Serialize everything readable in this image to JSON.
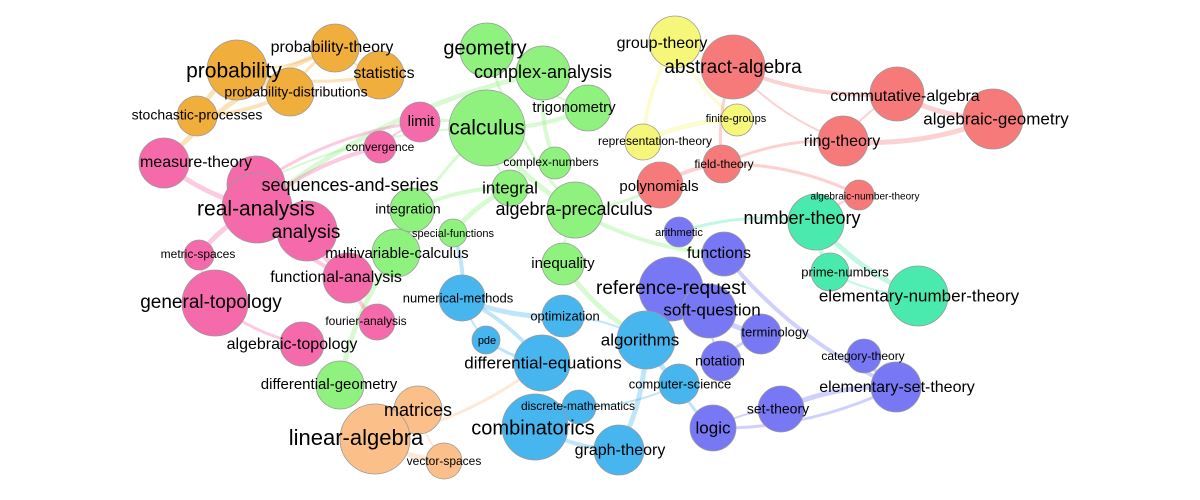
{
  "colors": {
    "orange": "#f0ae3c",
    "green": "#8ff27f",
    "pink": "#f56aaa",
    "yellow": "#f6f67a",
    "red": "#f77a7a",
    "teal": "#4aeaae",
    "blue": "#47b5ee",
    "purple": "#7878f5",
    "peach": "#fbc08a"
  },
  "graph": {
    "nodes": [
      {
        "id": "probability",
        "label": "probability",
        "group": "orange"
      },
      {
        "id": "probability-theory",
        "label": "probability-theory",
        "group": "orange"
      },
      {
        "id": "statistics",
        "label": "statistics",
        "group": "orange"
      },
      {
        "id": "probability-distributions",
        "label": "probability-distributions",
        "group": "orange"
      },
      {
        "id": "stochastic-processes",
        "label": "stochastic-processes",
        "group": "orange"
      },
      {
        "id": "geometry",
        "label": "geometry",
        "group": "green"
      },
      {
        "id": "complex-analysis",
        "label": "complex-analysis",
        "group": "green"
      },
      {
        "id": "trigonometry",
        "label": "trigonometry",
        "group": "green"
      },
      {
        "id": "calculus",
        "label": "calculus",
        "group": "green"
      },
      {
        "id": "complex-numbers",
        "label": "complex-numbers",
        "group": "green"
      },
      {
        "id": "integral",
        "label": "integral",
        "group": "green"
      },
      {
        "id": "algebra-precalculus",
        "label": "algebra-precalculus",
        "group": "green"
      },
      {
        "id": "integration",
        "label": "integration",
        "group": "green"
      },
      {
        "id": "special-functions",
        "label": "special-functions",
        "group": "green"
      },
      {
        "id": "multivariable-calculus",
        "label": "multivariable-calculus",
        "group": "green"
      },
      {
        "id": "inequality",
        "label": "inequality",
        "group": "green"
      },
      {
        "id": "differential-geometry",
        "label": "differential-geometry",
        "group": "green"
      },
      {
        "id": "limit",
        "label": "limit",
        "group": "pink"
      },
      {
        "id": "convergence",
        "label": "convergence",
        "group": "pink"
      },
      {
        "id": "measure-theory",
        "label": "measure-theory",
        "group": "pink"
      },
      {
        "id": "sequences-and-series",
        "label": "sequences-and-series",
        "group": "pink"
      },
      {
        "id": "real-analysis",
        "label": "real-analysis",
        "group": "pink"
      },
      {
        "id": "analysis",
        "label": "analysis",
        "group": "pink"
      },
      {
        "id": "metric-spaces",
        "label": "metric-spaces",
        "group": "pink"
      },
      {
        "id": "functional-analysis",
        "label": "functional-analysis",
        "group": "pink"
      },
      {
        "id": "general-topology",
        "label": "general-topology",
        "group": "pink"
      },
      {
        "id": "fourier-analysis",
        "label": "fourier-analysis",
        "group": "pink"
      },
      {
        "id": "algebraic-topology",
        "label": "algebraic-topology",
        "group": "pink"
      },
      {
        "id": "group-theory",
        "label": "group-theory",
        "group": "yellow"
      },
      {
        "id": "finite-groups",
        "label": "finite-groups",
        "group": "yellow"
      },
      {
        "id": "representation-theory",
        "label": "representation-theory",
        "group": "yellow"
      },
      {
        "id": "abstract-algebra",
        "label": "abstract-algebra",
        "group": "red"
      },
      {
        "id": "commutative-algebra",
        "label": "commutative-algebra",
        "group": "red"
      },
      {
        "id": "algebraic-geometry",
        "label": "algebraic-geometry",
        "group": "red"
      },
      {
        "id": "ring-theory",
        "label": "ring-theory",
        "group": "red"
      },
      {
        "id": "field-theory",
        "label": "field-theory",
        "group": "red"
      },
      {
        "id": "polynomials",
        "label": "polynomials",
        "group": "red"
      },
      {
        "id": "algebraic-number-theory",
        "label": "algebraic-number-theory",
        "group": "red"
      },
      {
        "id": "number-theory",
        "label": "number-theory",
        "group": "teal"
      },
      {
        "id": "prime-numbers",
        "label": "prime-numbers",
        "group": "teal"
      },
      {
        "id": "elementary-number-theory",
        "label": "elementary-number-theory",
        "group": "teal"
      },
      {
        "id": "arithmetic",
        "label": "arithmetic",
        "group": "purple"
      },
      {
        "id": "functions",
        "label": "functions",
        "group": "purple"
      },
      {
        "id": "reference-request",
        "label": "reference-request",
        "group": "purple"
      },
      {
        "id": "soft-question",
        "label": "soft-question",
        "group": "purple"
      },
      {
        "id": "terminology",
        "label": "terminology",
        "group": "purple"
      },
      {
        "id": "notation",
        "label": "notation",
        "group": "purple"
      },
      {
        "id": "category-theory",
        "label": "category-theory",
        "group": "purple"
      },
      {
        "id": "elementary-set-theory",
        "label": "elementary-set-theory",
        "group": "purple"
      },
      {
        "id": "set-theory",
        "label": "set-theory",
        "group": "purple"
      },
      {
        "id": "logic",
        "label": "logic",
        "group": "purple"
      },
      {
        "id": "numerical-methods",
        "label": "numerical-methods",
        "group": "blue"
      },
      {
        "id": "optimization",
        "label": "optimization",
        "group": "blue"
      },
      {
        "id": "pde",
        "label": "pde",
        "group": "blue"
      },
      {
        "id": "differential-equations",
        "label": "differential-equations",
        "group": "blue"
      },
      {
        "id": "algorithms",
        "label": "algorithms",
        "group": "blue"
      },
      {
        "id": "computer-science",
        "label": "computer-science",
        "group": "blue"
      },
      {
        "id": "discrete-mathematics",
        "label": "discrete-mathematics",
        "group": "blue"
      },
      {
        "id": "combinatorics",
        "label": "combinatorics",
        "group": "blue"
      },
      {
        "id": "graph-theory",
        "label": "graph-theory",
        "group": "blue"
      },
      {
        "id": "matrices",
        "label": "matrices",
        "group": "peach"
      },
      {
        "id": "linear-algebra",
        "label": "linear-algebra",
        "group": "peach"
      },
      {
        "id": "vector-spaces",
        "label": "vector-spaces",
        "group": "peach"
      }
    ],
    "edges": [
      [
        "probability",
        "probability-theory"
      ],
      [
        "probability",
        "statistics"
      ],
      [
        "probability",
        "probability-distributions"
      ],
      [
        "probability",
        "stochastic-processes"
      ],
      [
        "probability-theory",
        "statistics"
      ],
      [
        "probability-theory",
        "probability-distributions"
      ],
      [
        "stochastic-processes",
        "probability-distributions"
      ],
      [
        "probability-theory",
        "measure-theory"
      ],
      [
        "calculus",
        "integral"
      ],
      [
        "calculus",
        "limit"
      ],
      [
        "calculus",
        "trigonometry"
      ],
      [
        "calculus",
        "algebra-precalculus"
      ],
      [
        "calculus",
        "sequences-and-series"
      ],
      [
        "calculus",
        "multivariable-calculus"
      ],
      [
        "integral",
        "integration"
      ],
      [
        "integral",
        "special-functions"
      ],
      [
        "geometry",
        "trigonometry"
      ],
      [
        "geometry",
        "algebra-precalculus"
      ],
      [
        "complex-analysis",
        "complex-numbers"
      ],
      [
        "complex-analysis",
        "real-analysis"
      ],
      [
        "algebra-precalculus",
        "inequality"
      ],
      [
        "algebra-precalculus",
        "polynomials"
      ],
      [
        "algebra-precalculus",
        "functions"
      ],
      [
        "multivariable-calculus",
        "differential-geometry"
      ],
      [
        "limit",
        "convergence"
      ],
      [
        "limit",
        "sequences-and-series"
      ],
      [
        "convergence",
        "real-analysis"
      ],
      [
        "measure-theory",
        "real-analysis"
      ],
      [
        "sequences-and-series",
        "real-analysis"
      ],
      [
        "real-analysis",
        "analysis"
      ],
      [
        "real-analysis",
        "functional-analysis"
      ],
      [
        "real-analysis",
        "metric-spaces"
      ],
      [
        "metric-spaces",
        "general-topology"
      ],
      [
        "general-topology",
        "algebraic-topology"
      ],
      [
        "functional-analysis",
        "fourier-analysis"
      ],
      [
        "analysis",
        "functional-analysis"
      ],
      [
        "group-theory",
        "abstract-algebra"
      ],
      [
        "group-theory",
        "finite-groups"
      ],
      [
        "group-theory",
        "representation-theory"
      ],
      [
        "finite-groups",
        "representation-theory"
      ],
      [
        "abstract-algebra",
        "ring-theory"
      ],
      [
        "abstract-algebra",
        "field-theory"
      ],
      [
        "abstract-algebra",
        "commutative-algebra"
      ],
      [
        "commutative-algebra",
        "algebraic-geometry"
      ],
      [
        "commutative-algebra",
        "ring-theory"
      ],
      [
        "ring-theory",
        "field-theory"
      ],
      [
        "field-theory",
        "polynomials"
      ],
      [
        "ring-theory",
        "algebraic-geometry"
      ],
      [
        "algebraic-number-theory",
        "number-theory"
      ],
      [
        "algebraic-number-theory",
        "field-theory"
      ],
      [
        "number-theory",
        "prime-numbers"
      ],
      [
        "number-theory",
        "elementary-number-theory"
      ],
      [
        "prime-numbers",
        "elementary-number-theory"
      ],
      [
        "number-theory",
        "arithmetic"
      ],
      [
        "reference-request",
        "soft-question"
      ],
      [
        "soft-question",
        "terminology"
      ],
      [
        "soft-question",
        "notation"
      ],
      [
        "terminology",
        "notation"
      ],
      [
        "category-theory",
        "elementary-set-theory"
      ],
      [
        "elementary-set-theory",
        "set-theory"
      ],
      [
        "set-theory",
        "logic"
      ],
      [
        "logic",
        "elementary-set-theory"
      ],
      [
        "functions",
        "elementary-set-theory"
      ],
      [
        "numerical-methods",
        "optimization"
      ],
      [
        "numerical-methods",
        "pde"
      ],
      [
        "pde",
        "differential-equations"
      ],
      [
        "differential-equations",
        "numerical-methods"
      ],
      [
        "algorithms",
        "computer-science"
      ],
      [
        "algorithms",
        "optimization"
      ],
      [
        "discrete-mathematics",
        "combinatorics"
      ],
      [
        "combinatorics",
        "graph-theory"
      ],
      [
        "graph-theory",
        "algorithms"
      ],
      [
        "discrete-mathematics",
        "computer-science"
      ],
      [
        "computer-science",
        "logic"
      ],
      [
        "matrices",
        "linear-algebra"
      ],
      [
        "linear-algebra",
        "vector-spaces"
      ],
      [
        "matrices",
        "vector-spaces"
      ],
      [
        "linear-algebra",
        "differential-equations"
      ],
      [
        "numerical-methods",
        "special-functions"
      ],
      [
        "inequality",
        "algorithms"
      ]
    ]
  }
}
